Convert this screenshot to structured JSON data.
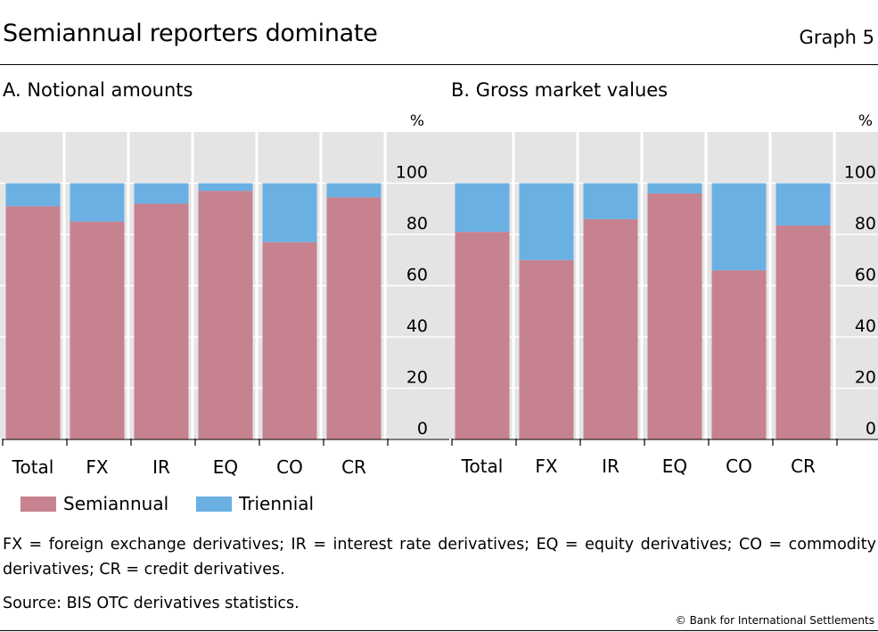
{
  "header": {
    "title": "Semiannual reporters dominate",
    "graph_number": "Graph 5"
  },
  "panels": {
    "a": {
      "title": "A. Notional amounts"
    },
    "b": {
      "title": "B. Gross market values"
    }
  },
  "legend": {
    "semiannual": "Semiannual",
    "triennial": "Triennial"
  },
  "footer": {
    "note": "FX = foreign exchange derivatives; IR = interest rate derivatives; EQ = equity derivatives; CO = commodity derivatives; CR = credit derivatives.",
    "source": "Source: BIS OTC derivatives statistics.",
    "copyright": "© Bank for International Settlements"
  },
  "colors": {
    "semiannual": "#c6828f",
    "triennial": "#6bb0e3",
    "plot_bg": "#e4e4e4"
  },
  "chart_data": [
    {
      "type": "bar",
      "stacked": true,
      "title": "A. Notional amounts",
      "categories": [
        "Total",
        "FX",
        "IR",
        "EQ",
        "CO",
        "CR"
      ],
      "series": [
        {
          "name": "Semiannual",
          "values": [
            91,
            85,
            92,
            97,
            77,
            94.5
          ]
        },
        {
          "name": "Triennial",
          "values": [
            9,
            15,
            8,
            3,
            23,
            5.5
          ]
        }
      ],
      "yunit": "%",
      "ylim": [
        0,
        120
      ],
      "yticks": [
        0,
        20,
        40,
        60,
        80,
        100
      ],
      "yaxis_side": "right",
      "legend": "bottom"
    },
    {
      "type": "bar",
      "stacked": true,
      "title": "B. Gross market values",
      "categories": [
        "Total",
        "FX",
        "IR",
        "EQ",
        "CO",
        "CR"
      ],
      "series": [
        {
          "name": "Semiannual",
          "values": [
            81,
            70,
            86,
            96,
            66,
            83.5
          ]
        },
        {
          "name": "Triennial",
          "values": [
            19,
            30,
            14,
            4,
            34,
            16.5
          ]
        }
      ],
      "yunit": "%",
      "ylim": [
        0,
        120
      ],
      "yticks": [
        0,
        20,
        40,
        60,
        80,
        100
      ],
      "yaxis_side": "right",
      "legend": "bottom"
    }
  ]
}
